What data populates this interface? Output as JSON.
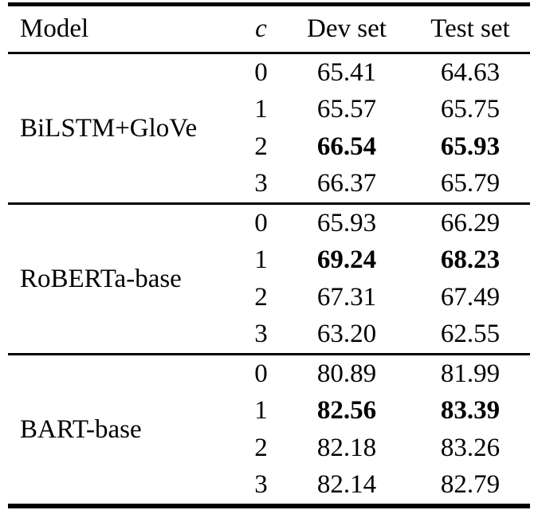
{
  "colors": {
    "text": "#000000",
    "background": "#ffffff",
    "rule": "#000000"
  },
  "table": {
    "headers": {
      "model": "Model",
      "c": "c",
      "dev": "Dev set",
      "test": "Test set"
    },
    "groups": [
      {
        "model": "BiLSTM+GloVe",
        "rows": [
          {
            "c": "0",
            "dev": "65.41",
            "test": "64.63",
            "bold": false
          },
          {
            "c": "1",
            "dev": "65.57",
            "test": "65.75",
            "bold": false
          },
          {
            "c": "2",
            "dev": "66.54",
            "test": "65.93",
            "bold": true
          },
          {
            "c": "3",
            "dev": "66.37",
            "test": "65.79",
            "bold": false
          }
        ]
      },
      {
        "model": "RoBERTa-base",
        "rows": [
          {
            "c": "0",
            "dev": "65.93",
            "test": "66.29",
            "bold": false
          },
          {
            "c": "1",
            "dev": "69.24",
            "test": "68.23",
            "bold": true
          },
          {
            "c": "2",
            "dev": "67.31",
            "test": "67.49",
            "bold": false
          },
          {
            "c": "3",
            "dev": "63.20",
            "test": "62.55",
            "bold": false
          }
        ]
      },
      {
        "model": "BART-base",
        "rows": [
          {
            "c": "0",
            "dev": "80.89",
            "test": "81.99",
            "bold": false
          },
          {
            "c": "1",
            "dev": "82.56",
            "test": "83.39",
            "bold": true
          },
          {
            "c": "2",
            "dev": "82.18",
            "test": "83.26",
            "bold": false
          },
          {
            "c": "3",
            "dev": "82.14",
            "test": "82.79",
            "bold": false
          }
        ]
      }
    ]
  }
}
